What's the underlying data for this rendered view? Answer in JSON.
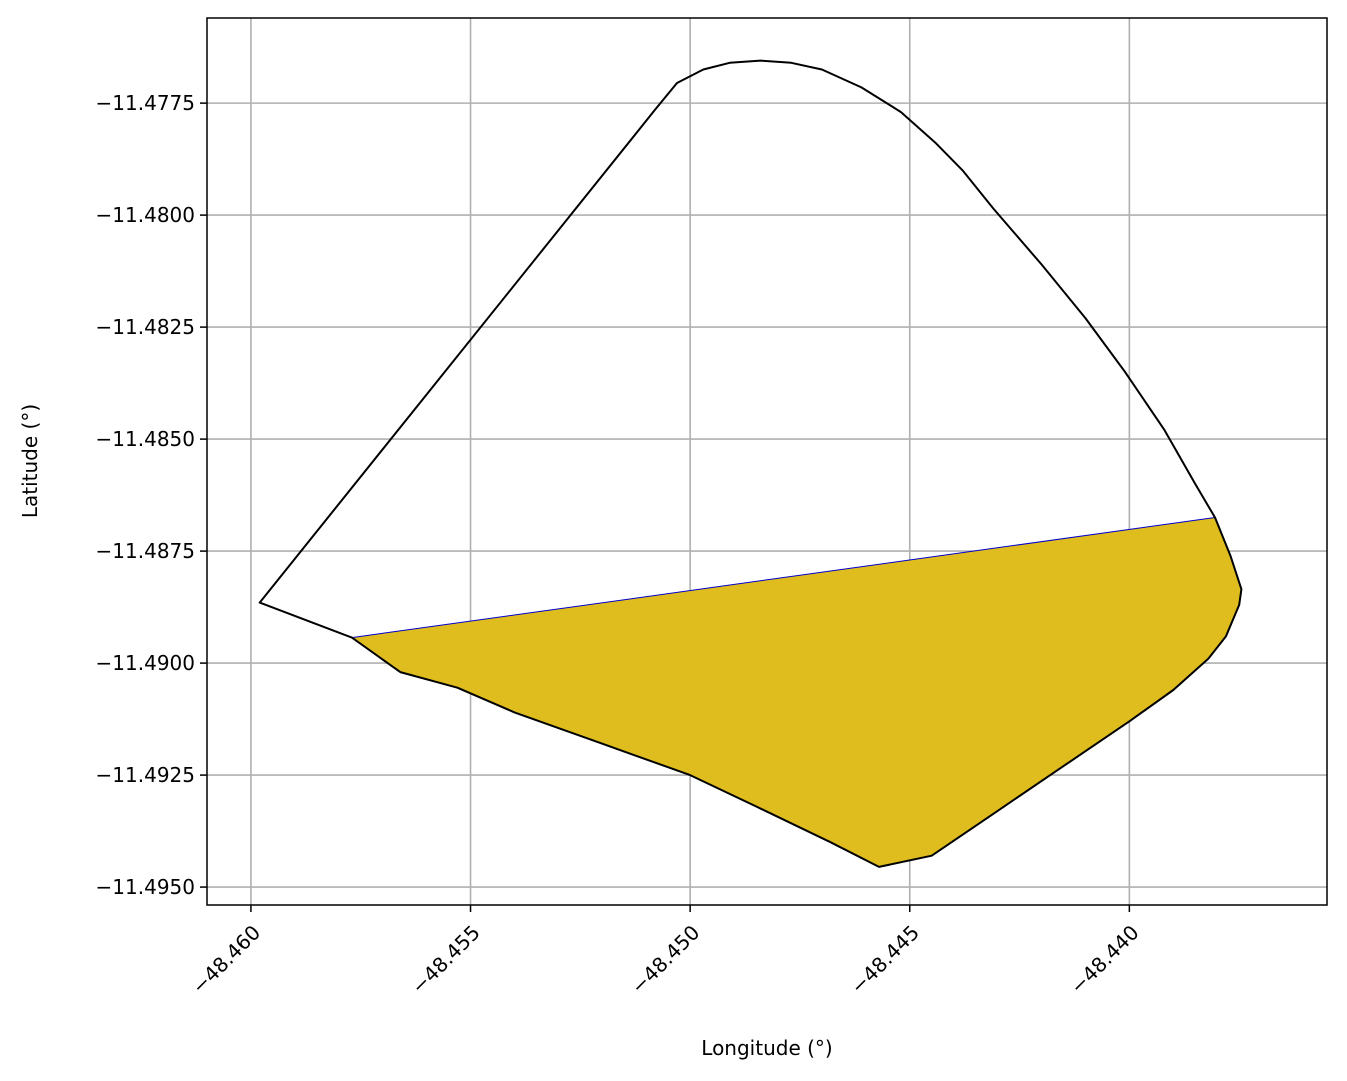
{
  "chart_data": {
    "type": "area",
    "title": "",
    "xlabel": "Longitude (°)",
    "ylabel": "Latitude (°)",
    "xlim": [
      -48.461,
      -48.4355
    ],
    "ylim": [
      -11.4954,
      -11.4756
    ],
    "grid": true,
    "x_ticks": [
      -48.46,
      -48.455,
      -48.45,
      -48.445,
      -48.44
    ],
    "x_tick_labels": [
      "−48.460",
      "−48.455",
      "−48.450",
      "−48.445",
      "−48.440"
    ],
    "y_ticks": [
      -11.4775,
      -11.48,
      -11.4825,
      -11.485,
      -11.4875,
      -11.49,
      -11.4925,
      -11.495
    ],
    "y_tick_labels": [
      "−11.4775",
      "−11.4800",
      "−11.4825",
      "−11.4850",
      "−11.4875",
      "−11.4900",
      "−11.4925",
      "−11.4950"
    ],
    "series": [
      {
        "role": "boundary",
        "color": "#000000",
        "points": [
          [
            -48.4598,
            -11.48865
          ],
          [
            -48.4508,
            -11.47765
          ],
          [
            -48.4503,
            -11.47705
          ],
          [
            -48.4497,
            -11.47675
          ],
          [
            -48.4491,
            -11.4766
          ],
          [
            -48.4484,
            -11.47655
          ],
          [
            -48.4477,
            -11.4766
          ],
          [
            -48.447,
            -11.47675
          ],
          [
            -48.4461,
            -11.47715
          ],
          [
            -48.4452,
            -11.4777
          ],
          [
            -48.4444,
            -11.4784
          ],
          [
            -48.4438,
            -11.479
          ],
          [
            -48.4431,
            -11.47985
          ],
          [
            -48.442,
            -11.4811
          ],
          [
            -48.441,
            -11.4823
          ],
          [
            -48.4401,
            -11.4835
          ],
          [
            -48.4392,
            -11.4848
          ],
          [
            -48.4385,
            -11.486
          ],
          [
            -48.43805,
            -11.48675
          ],
          [
            -48.4377,
            -11.4876
          ],
          [
            -48.43745,
            -11.48835
          ],
          [
            -48.4375,
            -11.4887
          ],
          [
            -48.4378,
            -11.4894
          ],
          [
            -48.4382,
            -11.4899
          ],
          [
            -48.439,
            -11.4906
          ],
          [
            -48.44,
            -11.4913
          ],
          [
            -48.4415,
            -11.4923
          ],
          [
            -48.443,
            -11.4933
          ],
          [
            -48.4445,
            -11.4943
          ],
          [
            -48.4457,
            -11.49455
          ],
          [
            -48.4468,
            -11.494
          ],
          [
            -48.4485,
            -11.4932
          ],
          [
            -48.45,
            -11.4925
          ],
          [
            -48.452,
            -11.4918
          ],
          [
            -48.454,
            -11.4911
          ],
          [
            -48.4553,
            -11.49055
          ],
          [
            -48.4566,
            -11.4902
          ],
          [
            -48.4577,
            -11.48943
          ],
          [
            -48.4598,
            -11.48865
          ]
        ]
      },
      {
        "role": "filled-region",
        "color": "#dfbd1f",
        "edge_color": "#0000cc",
        "points": [
          [
            -48.4577,
            -11.48943
          ],
          [
            -48.43805,
            -11.48675
          ],
          [
            -48.4377,
            -11.4876
          ],
          [
            -48.43745,
            -11.48835
          ],
          [
            -48.4375,
            -11.4887
          ],
          [
            -48.4378,
            -11.4894
          ],
          [
            -48.4382,
            -11.4899
          ],
          [
            -48.439,
            -11.4906
          ],
          [
            -48.44,
            -11.4913
          ],
          [
            -48.4415,
            -11.4923
          ],
          [
            -48.443,
            -11.4933
          ],
          [
            -48.4445,
            -11.4943
          ],
          [
            -48.4457,
            -11.49455
          ],
          [
            -48.4468,
            -11.494
          ],
          [
            -48.4485,
            -11.4932
          ],
          [
            -48.45,
            -11.4925
          ],
          [
            -48.452,
            -11.4918
          ],
          [
            -48.454,
            -11.4911
          ],
          [
            -48.4553,
            -11.49055
          ],
          [
            -48.4566,
            -11.4902
          ],
          [
            -48.4577,
            -11.48943
          ]
        ]
      }
    ]
  }
}
